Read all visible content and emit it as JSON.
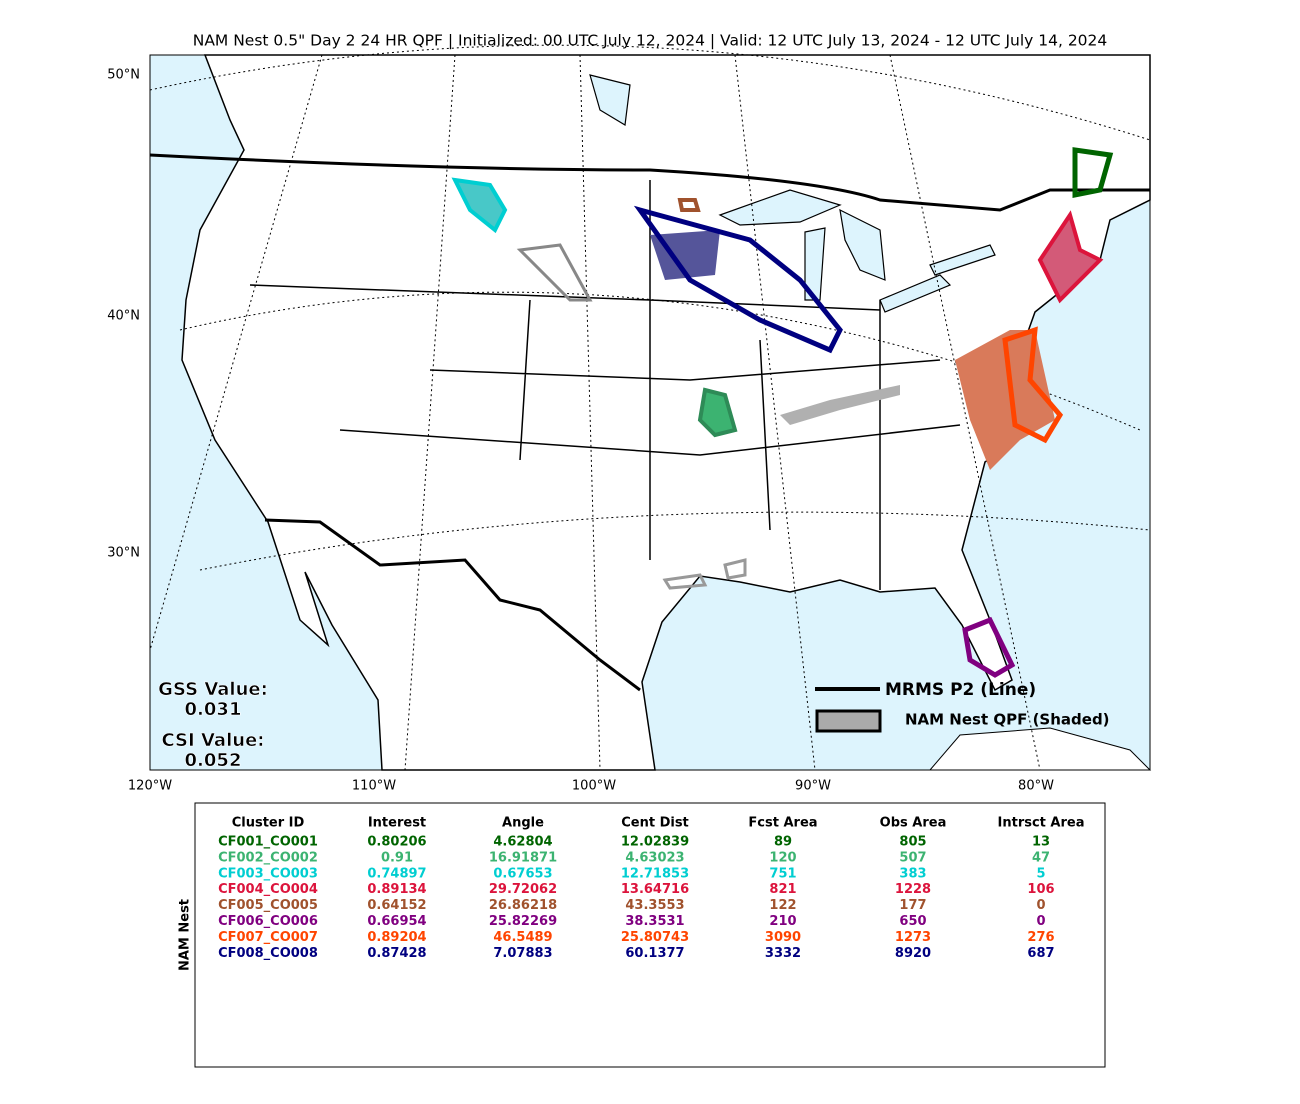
{
  "title": "NAM Nest 0.5\" Day 2 24 HR QPF | Initialized: 00 UTC July 12, 2024 | Valid: 12 UTC July 13, 2024 - 12 UTC July 14, 2024",
  "map": {
    "lat_labels": [
      "50°N",
      "40°N",
      "30°N"
    ],
    "lon_labels": [
      "120°W",
      "110°W",
      "100°W",
      "90°W",
      "80°W"
    ],
    "scores": {
      "gss_label": "GSS Value:",
      "gss_value": "0.031",
      "csi_label": "CSI Value:",
      "csi_value": "0.052"
    },
    "legend": {
      "line": "MRMS P2 (Line)",
      "shaded": "NAM Nest QPF (Shaded)"
    }
  },
  "table": {
    "side_label": "NAM Nest",
    "headers": [
      "Cluster ID",
      "Interest",
      "Angle",
      "Cent Dist",
      "Fcst Area",
      "Obs Area",
      "Intrsct Area"
    ],
    "rows": [
      {
        "color": "#006400",
        "cells": [
          "CF001_CO001",
          "0.80206",
          "4.62804",
          "12.02839",
          "89",
          "805",
          "13"
        ]
      },
      {
        "color": "#3cb371",
        "cells": [
          "CF002_CO002",
          "0.91",
          "16.91871",
          "4.63023",
          "120",
          "507",
          "47"
        ]
      },
      {
        "color": "#00ced1",
        "cells": [
          "CF003_CO003",
          "0.74897",
          "0.67653",
          "12.71853",
          "751",
          "383",
          "5"
        ]
      },
      {
        "color": "#dc143c",
        "cells": [
          "CF004_CO004",
          "0.89134",
          "29.72062",
          "13.64716",
          "821",
          "1228",
          "106"
        ]
      },
      {
        "color": "#a0522d",
        "cells": [
          "CF005_CO005",
          "0.64152",
          "26.86218",
          "43.3553",
          "122",
          "177",
          "0"
        ]
      },
      {
        "color": "#800080",
        "cells": [
          "CF006_CO006",
          "0.66954",
          "25.82269",
          "38.3531",
          "210",
          "650",
          "0"
        ]
      },
      {
        "color": "#ff4500",
        "cells": [
          "CF007_CO007",
          "0.89204",
          "46.5489",
          "25.80743",
          "3090",
          "1273",
          "276"
        ]
      },
      {
        "color": "#000080",
        "cells": [
          "CF008_CO008",
          "0.87428",
          "7.07883",
          "60.1377",
          "3332",
          "8920",
          "687"
        ]
      }
    ]
  }
}
